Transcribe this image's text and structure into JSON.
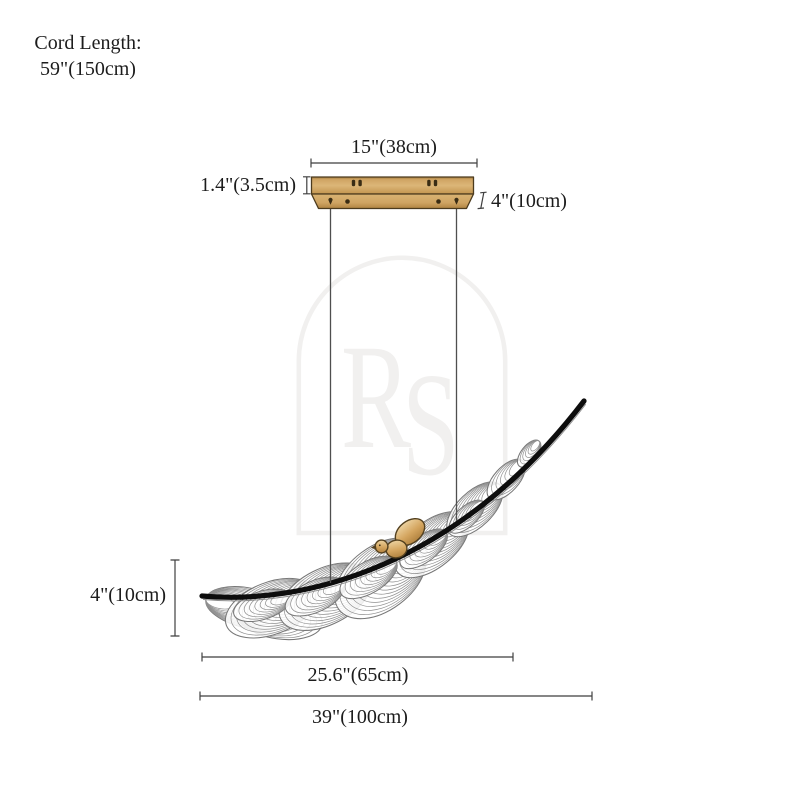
{
  "cord_note": {
    "line1": "Cord Length:",
    "line2": "59\"(150cm)"
  },
  "dimensions": {
    "canopy_width": "15\"(38cm)",
    "canopy_height": "1.4\"(3.5cm)",
    "canopy_depth": "4\"(10cm)",
    "fixture_height": "4\"(10cm)",
    "feather_length": "25.6\"(65cm)",
    "overall_length": "39\"(100cm)"
  },
  "watermark": {
    "letter_r": "R",
    "letter_s": "S"
  },
  "colors": {
    "background": "#ffffff",
    "text": "#1c1c1c",
    "dim_line": "#3f3f3f",
    "cord": "#4f4f4f",
    "spine": "#0d0d0d",
    "feather_stroke": "#8f8f8f",
    "watermark": "#f1f0ef",
    "outline": "#4c3b1e",
    "slot": "#3a2d15",
    "brass": "#cfa463",
    "brass_dark": "#b08441",
    "bird_outline": "#53401f"
  }
}
